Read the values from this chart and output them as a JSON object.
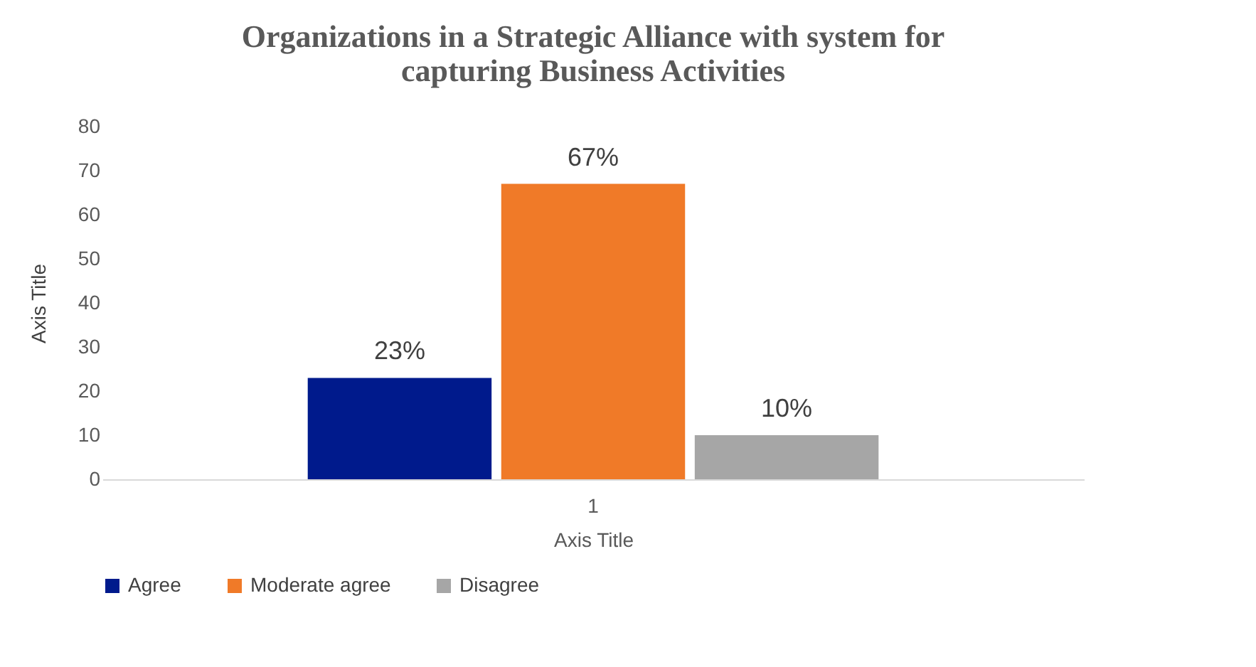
{
  "chart_data": {
    "type": "bar",
    "title": [
      "Organizations in a Strategic Alliance with system for",
      "capturing Business Activities"
    ],
    "xlabel": "Axis Title",
    "ylabel": "Axis Title",
    "categories": [
      "1"
    ],
    "ylim": [
      0,
      80
    ],
    "yticks": [
      0,
      10,
      20,
      30,
      40,
      50,
      60,
      70,
      80
    ],
    "grid": false,
    "legend": "bottom",
    "series": [
      {
        "name": "Agree",
        "color": "#001a8c",
        "values": [
          23
        ],
        "value_labels": [
          "23%"
        ]
      },
      {
        "name": "Moderate agree",
        "color": "#f07a28",
        "values": [
          67
        ],
        "value_labels": [
          "67%"
        ]
      },
      {
        "name": "Disagree",
        "color": "#a6a6a6",
        "values": [
          10
        ],
        "value_labels": [
          "10%"
        ]
      }
    ]
  }
}
